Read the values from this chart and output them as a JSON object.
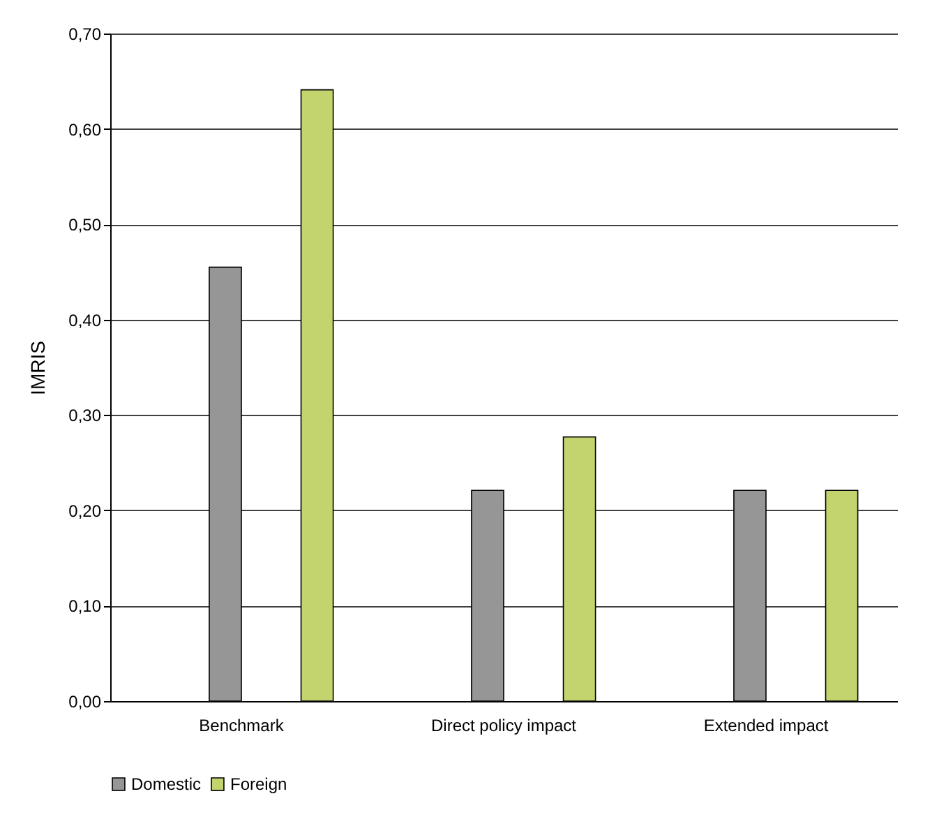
{
  "chart_data": {
    "type": "bar",
    "ylabel": "IMRIS",
    "categories": [
      "Benchmark",
      "Direct policy impact",
      "Extended impact"
    ],
    "series": [
      {
        "name": "Domestic",
        "color": "#969696",
        "values": [
          0.455,
          0.221,
          0.221
        ]
      },
      {
        "name": "Foreign",
        "color": "#c3d46f",
        "values": [
          0.641,
          0.277,
          0.221
        ]
      }
    ],
    "ylim": [
      0,
      0.7
    ],
    "yticks": [
      {
        "value": 0,
        "label": "0,00"
      },
      {
        "value": 0.1,
        "label": "0,10"
      },
      {
        "value": 0.2,
        "label": "0,20"
      },
      {
        "value": 0.3,
        "label": "0,30"
      },
      {
        "value": 0.4,
        "label": "0,40"
      },
      {
        "value": 0.5,
        "label": "0,50"
      },
      {
        "value": 0.6,
        "label": "0,60"
      },
      {
        "value": 0.7,
        "label": "0,70"
      }
    ],
    "grid": "y",
    "legend": "bottom"
  }
}
